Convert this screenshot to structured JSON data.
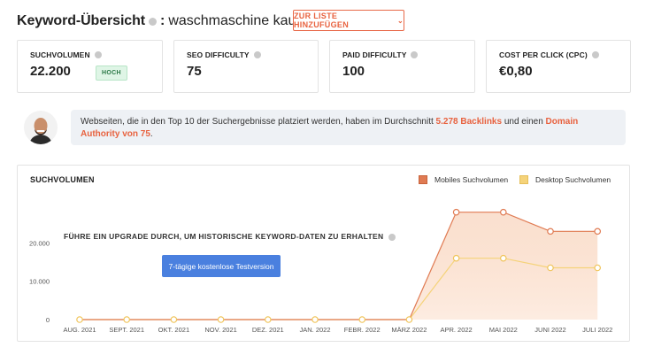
{
  "header": {
    "title": "Keyword-Übersicht",
    "separator": ":",
    "keyword": "waschmaschine kaufen",
    "add_button_label": "ZUR LISTE HINZUFÜGEN",
    "add_button_icon": "chevron-down-icon"
  },
  "metrics": [
    {
      "label": "SUCHVOLUMEN",
      "value": "22.200",
      "badge": "HOCH"
    },
    {
      "label": "SEO DIFFICULTY",
      "value": "75"
    },
    {
      "label": "PAID DIFFICULTY",
      "value": "100"
    },
    {
      "label": "COST PER CLICK (CPC)",
      "value": "€0,80"
    }
  ],
  "notice": {
    "text_before": "Webseiten, die in den Top 10 der Suchergebnisse platziert werden, haben im Durchschnitt ",
    "highlight_backlinks": "5.278 Backlinks",
    "text_middle": " und einen ",
    "highlight_authority": "Domain Authority von 75",
    "text_after": "."
  },
  "colors": {
    "accent": "#e8623f",
    "mobile_series": "#e07b53",
    "desktop_series": "#f5d37a",
    "badge_bg": "#dff5e6",
    "trial_button": "#4a80df",
    "notice_bg": "#eef1f5"
  },
  "chart": {
    "upgrade_text": "FÜHRE EIN UPGRADE DURCH, UM HISTORISCHE KEYWORD-DATEN ZU ERHALTEN",
    "trial_button_label": "7-tägige kostenlose Testversion"
  },
  "chart_data": {
    "type": "area",
    "title": "SUCHVOLUMEN",
    "categories": [
      "AUG. 2021",
      "SEPT. 2021",
      "OKT. 2021",
      "NOV. 2021",
      "DEZ. 2021",
      "JAN. 2022",
      "FEBR. 2022",
      "MÄRZ 2022",
      "APR. 2022",
      "MAI 2022",
      "JUNI 2022",
      "JULI 2022"
    ],
    "series": [
      {
        "name": "Mobiles Suchvolumen",
        "values": [
          0,
          0,
          0,
          0,
          0,
          0,
          0,
          0,
          28000,
          28000,
          23000,
          23000
        ]
      },
      {
        "name": "Desktop Suchvolumen",
        "values": [
          0,
          0,
          0,
          0,
          0,
          0,
          0,
          0,
          16000,
          16000,
          13500,
          13500
        ]
      }
    ],
    "yticks": [
      {
        "value": 0,
        "label": "0"
      },
      {
        "value": 10000,
        "label": "10.000"
      },
      {
        "value": 20000,
        "label": "20.000"
      }
    ],
    "ylim": [
      0,
      30000
    ],
    "legend_position": "top-right",
    "grid": false
  }
}
